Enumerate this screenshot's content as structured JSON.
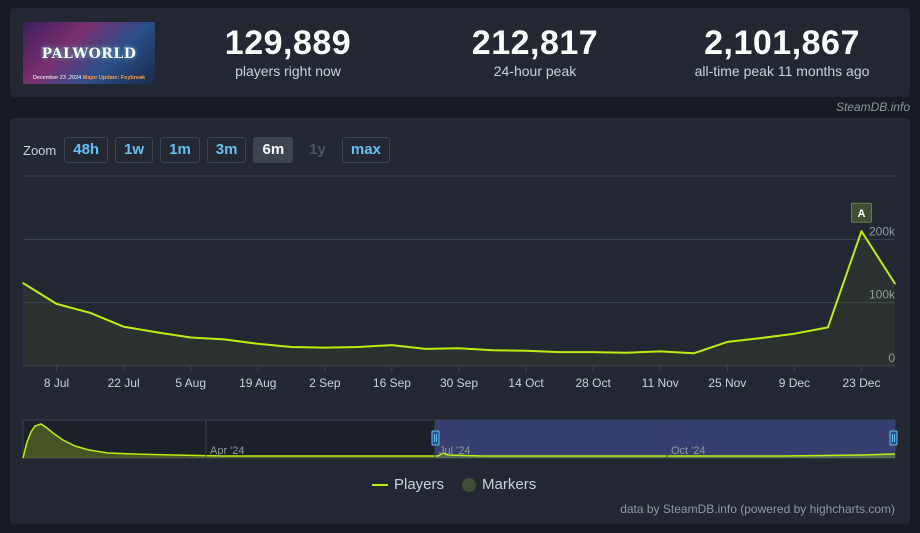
{
  "header": {
    "game_thumbnail": {
      "title": "PALWORLD",
      "caption_date": "December 23 ,2024",
      "caption_update": "Major Update: Feybreak"
    },
    "stats": [
      {
        "value": "129,889",
        "label": "players right now"
      },
      {
        "value": "212,817",
        "label": "24-hour peak"
      },
      {
        "value": "2,101,867",
        "label": "all-time peak 11 months ago"
      }
    ]
  },
  "credit_top": "SteamDB.info",
  "zoom": {
    "label": "Zoom",
    "options": [
      {
        "label": "48h",
        "state": "normal"
      },
      {
        "label": "1w",
        "state": "normal"
      },
      {
        "label": "1m",
        "state": "normal"
      },
      {
        "label": "3m",
        "state": "normal"
      },
      {
        "label": "6m",
        "state": "active"
      },
      {
        "label": "1y",
        "state": "disabled"
      },
      {
        "label": "max",
        "state": "normal"
      }
    ]
  },
  "legend": {
    "players": "Players",
    "markers": "Markers"
  },
  "credit_bottom": "data by SteamDB.info (powered by highcharts.com)",
  "colors": {
    "line": "#beee11",
    "marker": "#3e4d34",
    "navigator_selection": "#3a4478"
  },
  "chart_data": {
    "type": "line",
    "title": "",
    "xlabel": "",
    "ylabel": "",
    "ylim": [
      0,
      300000
    ],
    "y_ticks": [
      0,
      100000,
      200000
    ],
    "y_tick_labels": [
      "0",
      "100k",
      "200k"
    ],
    "x_ticks": [
      "2024-07-08",
      "2024-07-22",
      "2024-08-05",
      "2024-08-19",
      "2024-09-02",
      "2024-09-16",
      "2024-09-30",
      "2024-10-14",
      "2024-10-28",
      "2024-11-11",
      "2024-11-25",
      "2024-12-09",
      "2024-12-23"
    ],
    "x_tick_labels": [
      "8 Jul",
      "22 Jul",
      "5 Aug",
      "19 Aug",
      "2 Sep",
      "16 Sep",
      "30 Sep",
      "14 Oct",
      "28 Oct",
      "11 Nov",
      "25 Nov",
      "9 Dec",
      "23 Dec"
    ],
    "xlim": [
      "2024-07-01",
      "2024-12-30"
    ],
    "grid": true,
    "legend_position": "bottom-center",
    "series": [
      {
        "name": "Players",
        "x": [
          "2024-07-01",
          "2024-07-08",
          "2024-07-15",
          "2024-07-22",
          "2024-07-29",
          "2024-08-05",
          "2024-08-12",
          "2024-08-19",
          "2024-08-26",
          "2024-09-02",
          "2024-09-09",
          "2024-09-16",
          "2024-09-23",
          "2024-09-30",
          "2024-10-07",
          "2024-10-14",
          "2024-10-21",
          "2024-10-28",
          "2024-11-04",
          "2024-11-11",
          "2024-11-18",
          "2024-11-25",
          "2024-12-02",
          "2024-12-09",
          "2024-12-16",
          "2024-12-23",
          "2024-12-30"
        ],
        "values": [
          131000,
          98000,
          84000,
          62000,
          53000,
          45000,
          42000,
          35000,
          30000,
          29000,
          30000,
          33000,
          27000,
          28000,
          25000,
          24000,
          22000,
          22000,
          21000,
          23000,
          20000,
          38000,
          44000,
          51000,
          61000,
          212817,
          130000
        ]
      }
    ],
    "markers": [
      {
        "date": "2024-12-23",
        "label": "A"
      }
    ],
    "navigator": {
      "labels": [
        "Apr '24",
        "Jul '24",
        "Oct '24"
      ]
    }
  }
}
